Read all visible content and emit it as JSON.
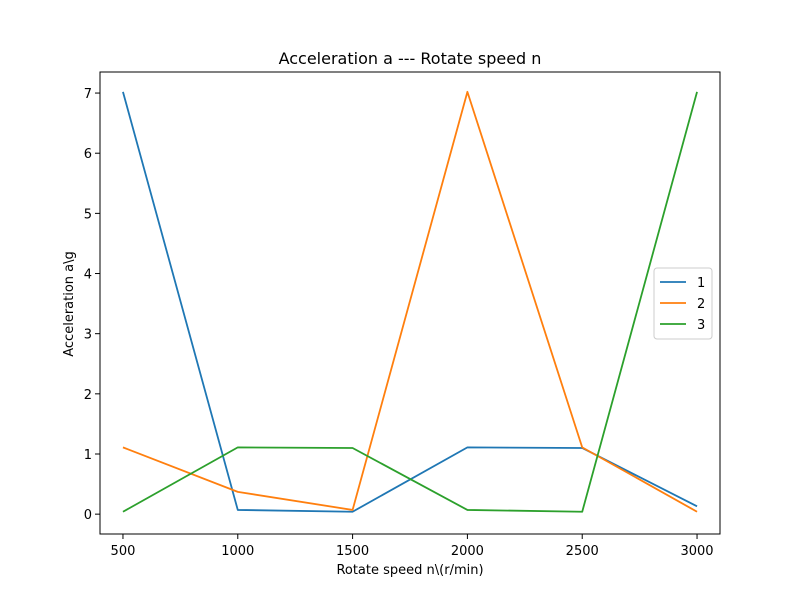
{
  "chart_data": {
    "type": "line",
    "title": "Acceleration a --- Rotate speed n",
    "xlabel": "Rotate speed n\\(r/min)",
    "ylabel": "Acceleration a\\g",
    "x": [
      500,
      1000,
      1500,
      2000,
      2500,
      3000
    ],
    "xlim": [
      400,
      3100
    ],
    "ylim": [
      -0.33,
      7.35
    ],
    "xticks": [
      500,
      1000,
      1500,
      2000,
      2500,
      3000
    ],
    "yticks": [
      0,
      1,
      2,
      3,
      4,
      5,
      6,
      7
    ],
    "grid": false,
    "legend_position": "center-right",
    "series": [
      {
        "name": "1",
        "color": "#1f77b4",
        "values": [
          7.02,
          0.07,
          0.04,
          1.11,
          1.1,
          0.13
        ]
      },
      {
        "name": "2",
        "color": "#ff7f0e",
        "values": [
          1.11,
          0.37,
          0.07,
          7.02,
          1.11,
          0.04
        ]
      },
      {
        "name": "3",
        "color": "#2ca02c",
        "values": [
          0.04,
          1.11,
          1.1,
          0.07,
          0.04,
          7.02
        ]
      }
    ]
  }
}
